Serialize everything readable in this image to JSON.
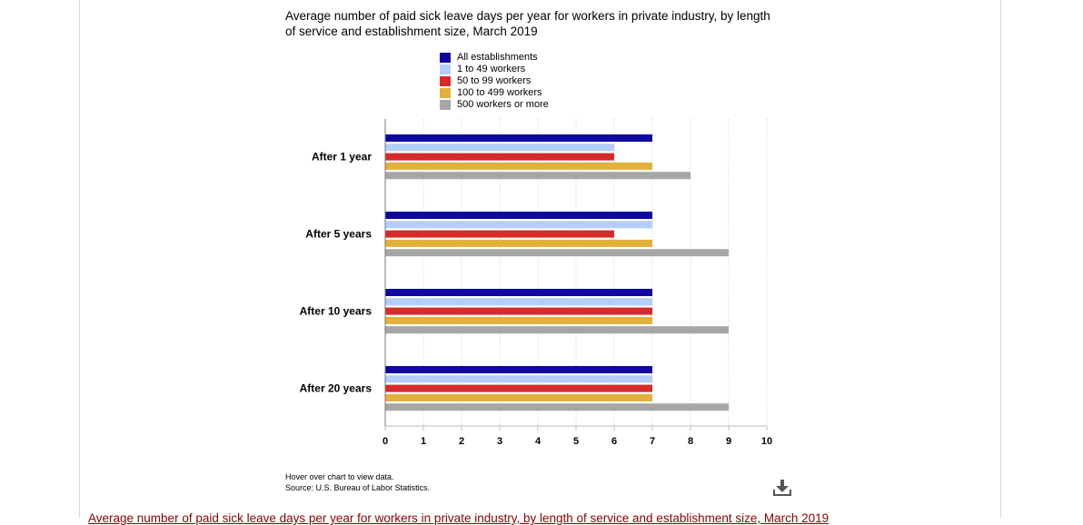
{
  "chart_data": {
    "type": "bar",
    "orientation": "horizontal",
    "title": "Average number of paid sick leave days per year for workers in private industry, by length of service and establishment size, March 2019",
    "categories": [
      "After 1 year",
      "After 5 years",
      "After 10 years",
      "After 20 years"
    ],
    "series": [
      {
        "name": "All establishments",
        "color": "#10079f",
        "values": [
          7,
          7,
          7,
          7
        ]
      },
      {
        "name": "1 to 49 workers",
        "color": "#b4cdfa",
        "values": [
          6,
          7,
          7,
          7
        ]
      },
      {
        "name": "50 to 99 workers",
        "color": "#d62b2b",
        "values": [
          6,
          6,
          7,
          7
        ]
      },
      {
        "name": "100 to 499 workers",
        "color": "#e1b13b",
        "values": [
          7,
          7,
          7,
          7
        ]
      },
      {
        "name": "500 workers or more",
        "color": "#a6a6a6",
        "values": [
          8,
          9,
          9,
          9
        ]
      }
    ],
    "xlim": [
      0,
      10
    ],
    "xticks": [
      "0",
      "1",
      "2",
      "3",
      "4",
      "5",
      "6",
      "7",
      "8",
      "9",
      "10"
    ],
    "grid": true,
    "legend_position": "top"
  },
  "footnotes": {
    "hover": "Hover over chart to view data.",
    "source": "Source: U.S. Bureau of Labor Statistics."
  },
  "icons": {
    "download": "download-icon"
  },
  "bottom_caption": "Average number of paid sick leave days per year for workers in private industry, by length of service and establishment size, March 2019"
}
